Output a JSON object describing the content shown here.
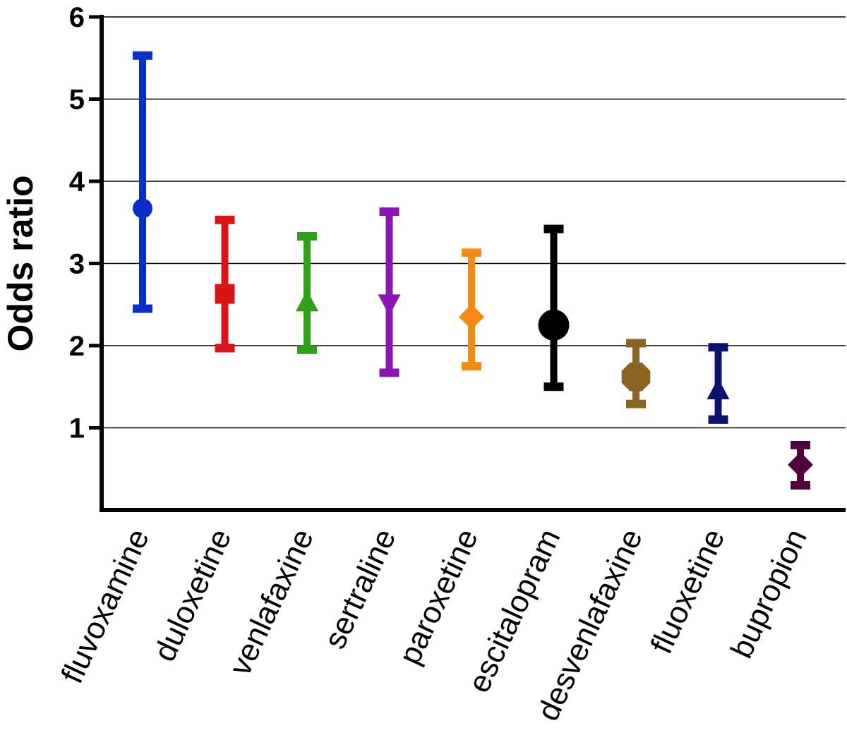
{
  "chart_data": {
    "type": "scatter",
    "subtype": "point-with-error-bars",
    "title": "",
    "xlabel": "",
    "ylabel": "Odds ratio",
    "ylim": [
      0,
      6
    ],
    "yticks": [
      1,
      2,
      3,
      4,
      5,
      6
    ],
    "grid": true,
    "categories": [
      "fluvoxamine",
      "duloxetine",
      "venlafaxine",
      "sertraline",
      "paroxetine",
      "escitalopram",
      "desvenlafaxine",
      "fluoxetine",
      "bupropion"
    ],
    "series": [
      {
        "name": "Odds ratio",
        "values": [
          3.67,
          2.63,
          2.52,
          2.52,
          2.35,
          2.25,
          1.62,
          1.45,
          0.55
        ],
        "lower": [
          2.45,
          1.97,
          1.95,
          1.67,
          1.75,
          1.5,
          1.29,
          1.1,
          0.3
        ],
        "upper": [
          5.53,
          3.53,
          3.33,
          3.63,
          3.13,
          3.42,
          2.03,
          1.98,
          0.79
        ],
        "markers": [
          "circle",
          "square",
          "triangle-up",
          "triangle-down",
          "diamond",
          "circle",
          "octagon",
          "triangle-up",
          "diamond"
        ],
        "colors": [
          "#0a2ec8",
          "#d81414",
          "#2fa01a",
          "#8c14b4",
          "#f58a12",
          "#000000",
          "#8a6420",
          "#0c136e",
          "#52003d"
        ]
      }
    ]
  }
}
